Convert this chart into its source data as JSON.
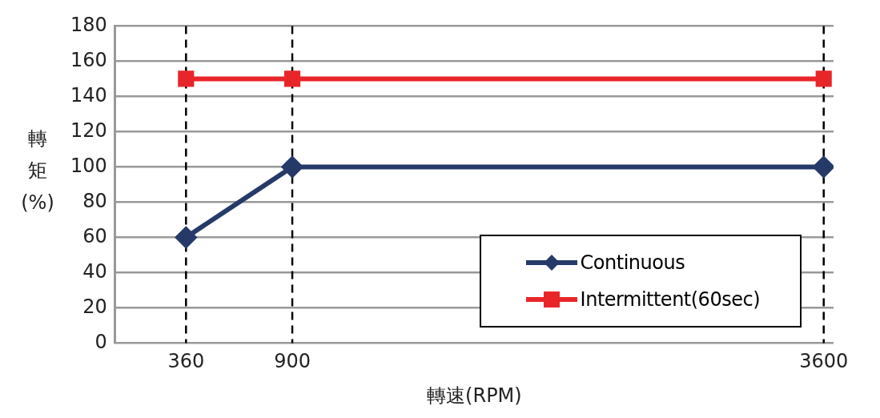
{
  "chart_data": {
    "type": "line",
    "xlabel": "轉速(RPM)",
    "ylabel": "轉矩(%)",
    "xlim": [
      0,
      3650
    ],
    "xticks": [
      360,
      900,
      3600
    ],
    "ylim": [
      0,
      180
    ],
    "yticks": [
      0,
      20,
      40,
      60,
      80,
      100,
      120,
      140,
      160,
      180
    ],
    "grid": "y",
    "legend": "bottom right",
    "ref_lines": [
      {
        "axis": "x",
        "value": 360,
        "color": "#000000",
        "line_style": "dashed"
      },
      {
        "axis": "x",
        "value": 900,
        "color": "#000000",
        "line_style": "dashed"
      },
      {
        "axis": "x",
        "value": 3600,
        "color": "#000000",
        "line_style": "dashed"
      }
    ],
    "series": [
      {
        "name": "Continuous",
        "color": "#263a6a",
        "marker": "diamond",
        "x": [
          360,
          900,
          3600
        ],
        "values": [
          60,
          100,
          100
        ]
      },
      {
        "name": "Intermittent(60sec)",
        "color": "#e8262a",
        "marker": "square",
        "x": [
          360,
          900,
          3600
        ],
        "values": [
          150,
          150,
          150
        ]
      }
    ]
  }
}
